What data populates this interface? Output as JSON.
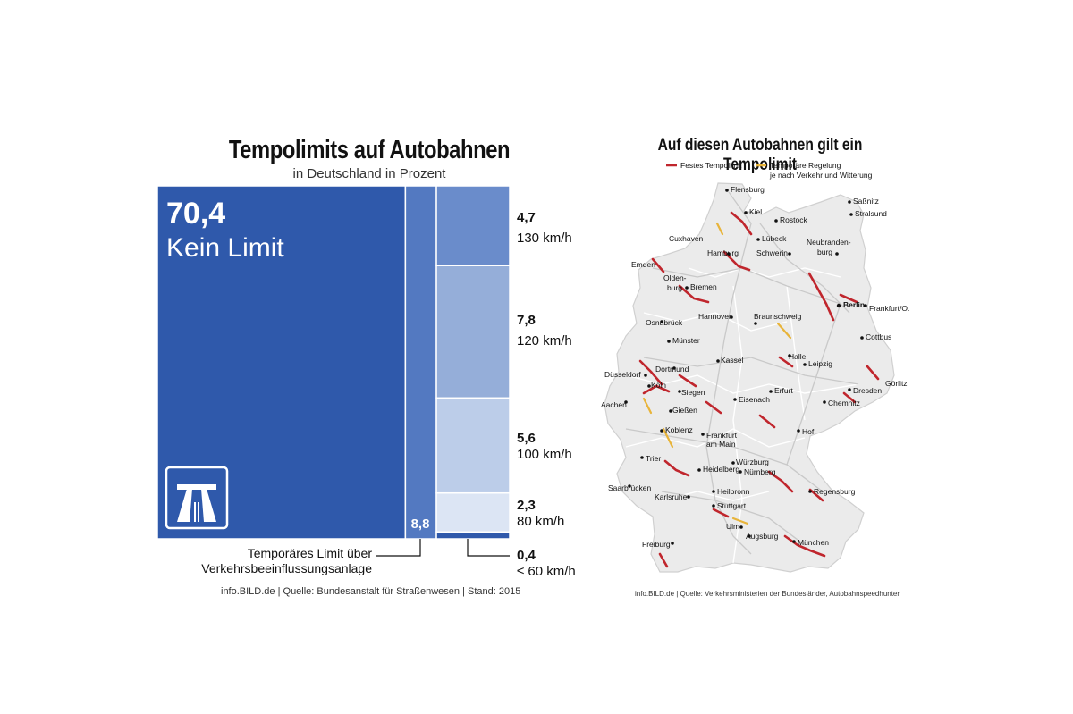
{
  "chart_data": [
    {
      "type": "treemap",
      "title": "Tempolimits auf Autobahnen",
      "subtitle": "in Deutschland in Prozent",
      "unit": "Prozent",
      "categories": [
        {
          "key": "kein",
          "value": 70.4,
          "value_label": "70,4",
          "label": "Kein Limit",
          "color": "#2f59ab"
        },
        {
          "key": "temp",
          "value": 8.8,
          "value_label": "8,8",
          "label": "Temporäres Limit über Verkehrsbeeinflussungsanlage",
          "color": "#5379c1"
        },
        {
          "key": "130",
          "value": 4.7,
          "value_label": "4,7",
          "label": "130 km/h",
          "color": "#6a8ccb"
        },
        {
          "key": "120",
          "value": 7.8,
          "value_label": "7,8",
          "label": "120 km/h",
          "color": "#95aed9"
        },
        {
          "key": "100",
          "value": 5.6,
          "value_label": "5,6",
          "label": "100 km/h",
          "color": "#bccde9"
        },
        {
          "key": "80",
          "value": 2.3,
          "value_label": "2,3",
          "label": "80 km/h",
          "color": "#dce5f4"
        },
        {
          "key": "60",
          "value": 0.4,
          "value_label": "0,4",
          "label": "≤ 60 km/h",
          "color": "#2f59ab"
        }
      ],
      "annotation_temp_line1": "Temporäres Limit über",
      "annotation_temp_line2": "Verkehrsbeeinflussungsanlage",
      "source": "info.BILD.de | Quelle: Bundesanstalt für Straßenwesen | Stand: 2015"
    }
  ],
  "map": {
    "title": "Auf diesen Autobahnen gilt ein Tempolimit",
    "legend": {
      "fixed_label": "Festes Tempolimit",
      "temporary_line1": "Temporäre Regelung",
      "temporary_line2": "je nach Verkehr und Witterung",
      "fixed_color": "#c0262d",
      "temporary_color": "#e8b43a"
    },
    "source": "info.BILD.de | Quelle: Verkehrsministerien der Bundesländer, Autobahnspeedhunter",
    "cities": [
      {
        "name": "Flensburg"
      },
      {
        "name": "Saßnitz"
      },
      {
        "name": "Kiel"
      },
      {
        "name": "Stralsund"
      },
      {
        "name": "Rostock"
      },
      {
        "name": "Cuxhaven"
      },
      {
        "name": "Lübeck"
      },
      {
        "name": "Neubranden-"
      },
      {
        "name": "burg"
      },
      {
        "name": "Emden"
      },
      {
        "name": "Hamburg"
      },
      {
        "name": "Schwerin"
      },
      {
        "name": "Olden-"
      },
      {
        "name": "burg"
      },
      {
        "name": "Bremen"
      },
      {
        "name": "Berlin"
      },
      {
        "name": "Frankfurt/O."
      },
      {
        "name": "Osnabrück"
      },
      {
        "name": "Hannover"
      },
      {
        "name": "Braunschweig"
      },
      {
        "name": "Münster"
      },
      {
        "name": "Cottbus"
      },
      {
        "name": "Düsseldorf"
      },
      {
        "name": "Dortmund"
      },
      {
        "name": "Kassel"
      },
      {
        "name": "Halle"
      },
      {
        "name": "Leipzig"
      },
      {
        "name": "Köln"
      },
      {
        "name": "Siegen"
      },
      {
        "name": "Dresden"
      },
      {
        "name": "Görlitz"
      },
      {
        "name": "Aachen"
      },
      {
        "name": "Erfurt"
      },
      {
        "name": "Eisenach"
      },
      {
        "name": "Chemnitz"
      },
      {
        "name": "Gießen"
      },
      {
        "name": "Koblenz"
      },
      {
        "name": "Frankfurt"
      },
      {
        "name": "am Main"
      },
      {
        "name": "Hof"
      },
      {
        "name": "Trier"
      },
      {
        "name": "Würzburg"
      },
      {
        "name": "Heidelberg"
      },
      {
        "name": "Nürnberg"
      },
      {
        "name": "Saarbrücken"
      },
      {
        "name": "Regensburg"
      },
      {
        "name": "Heilbronn"
      },
      {
        "name": "Karlsruhe"
      },
      {
        "name": "Stuttgart"
      },
      {
        "name": "Ulm"
      },
      {
        "name": "Augsburg"
      },
      {
        "name": "Freiburg"
      },
      {
        "name": "München"
      }
    ]
  }
}
